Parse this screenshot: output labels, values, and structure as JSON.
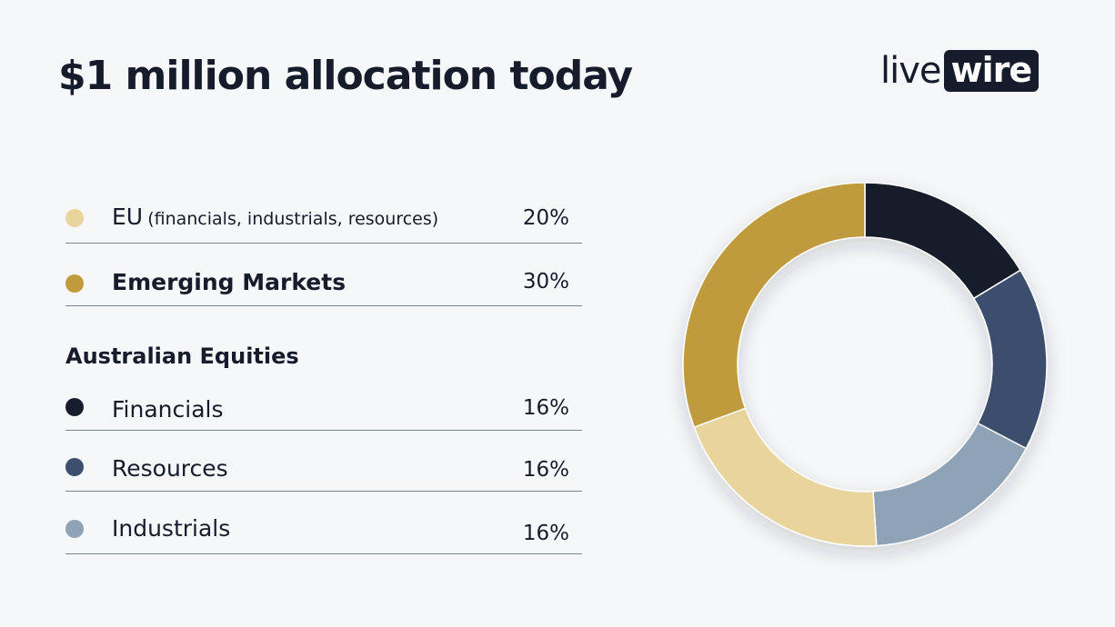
{
  "title": "$1 million allocation today",
  "logo": {
    "part1": "live",
    "part2": "wire"
  },
  "legend": {
    "top_items": [
      {
        "label": "EU",
        "sublabel": "(financials, industrials, resources)",
        "value": "20%",
        "color": "#e9d49c"
      },
      {
        "label": "Emerging Markets",
        "sublabel": "",
        "value": "30%",
        "color": "#c09b3e"
      }
    ],
    "section_heading": "Australian Equities",
    "section_items": [
      {
        "label": "Financials",
        "value": "16%",
        "color": "#171d2c"
      },
      {
        "label": "Resources",
        "value": "16%",
        "color": "#3d4e6e"
      },
      {
        "label": "Industrials",
        "value": "16%",
        "color": "#8fa3b7"
      }
    ]
  },
  "chart_data": {
    "type": "pie",
    "subtype": "donut",
    "title": "$1 million allocation today",
    "slices": [
      {
        "label": "Financials",
        "value": 16,
        "color": "#171d2c"
      },
      {
        "label": "Resources",
        "value": 16,
        "color": "#3d4e6e"
      },
      {
        "label": "Industrials",
        "value": 16,
        "color": "#8fa3b7"
      },
      {
        "label": "EU (financials, industrials, resources)",
        "value": 20,
        "color": "#e9d49c"
      },
      {
        "label": "Emerging Markets",
        "value": 30,
        "color": "#c09b3e"
      }
    ],
    "start_angle_deg": 0,
    "direction": "clockwise",
    "legend_position": "left"
  }
}
